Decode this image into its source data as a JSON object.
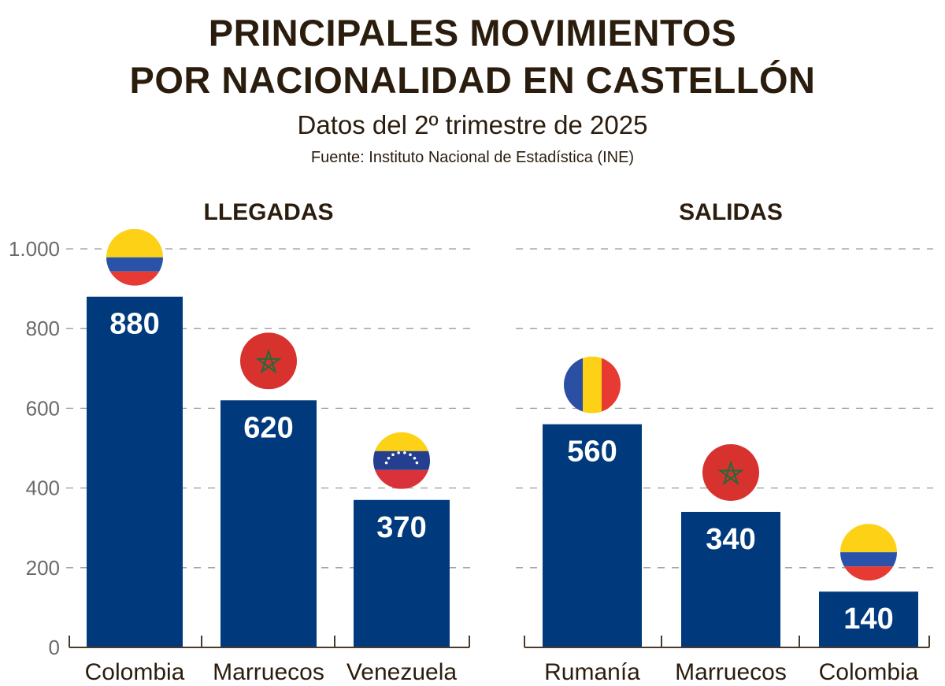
{
  "title_line1": "PRINCIPALES MOVIMIENTOS",
  "title_line2": "POR NACIONALIDAD EN CASTELLÓN",
  "subtitle": "Datos del 2º trimestre de 2025",
  "source": "Fuente: Instituto Nacional de Estadística (INE)",
  "colors": {
    "bar": "#003a7d",
    "text": "#2b1d0e",
    "grid": "#9a9a9a"
  },
  "chart_data": [
    {
      "type": "bar",
      "title": "LLEGADAS",
      "categories": [
        "Colombia",
        "Marruecos",
        "Venezuela"
      ],
      "values": [
        880,
        620,
        370
      ],
      "data_labels": [
        "880",
        "620",
        "370"
      ],
      "flags": [
        "colombia-flag",
        "morocco-flag",
        "venezuela-flag"
      ],
      "ylim": [
        0,
        1000
      ],
      "yticks": [
        0,
        200,
        400,
        600,
        800,
        1000
      ],
      "ytick_labels": [
        "0",
        "200",
        "400",
        "600",
        "800",
        "1.000"
      ],
      "grid": true
    },
    {
      "type": "bar",
      "title": "SALIDAS",
      "categories": [
        "Rumanía",
        "Marruecos",
        "Colombia"
      ],
      "values": [
        560,
        340,
        140
      ],
      "data_labels": [
        "560",
        "340",
        "140"
      ],
      "flags": [
        "romania-flag",
        "morocco-flag",
        "colombia-flag"
      ],
      "ylim": [
        0,
        1000
      ],
      "grid": true
    }
  ]
}
